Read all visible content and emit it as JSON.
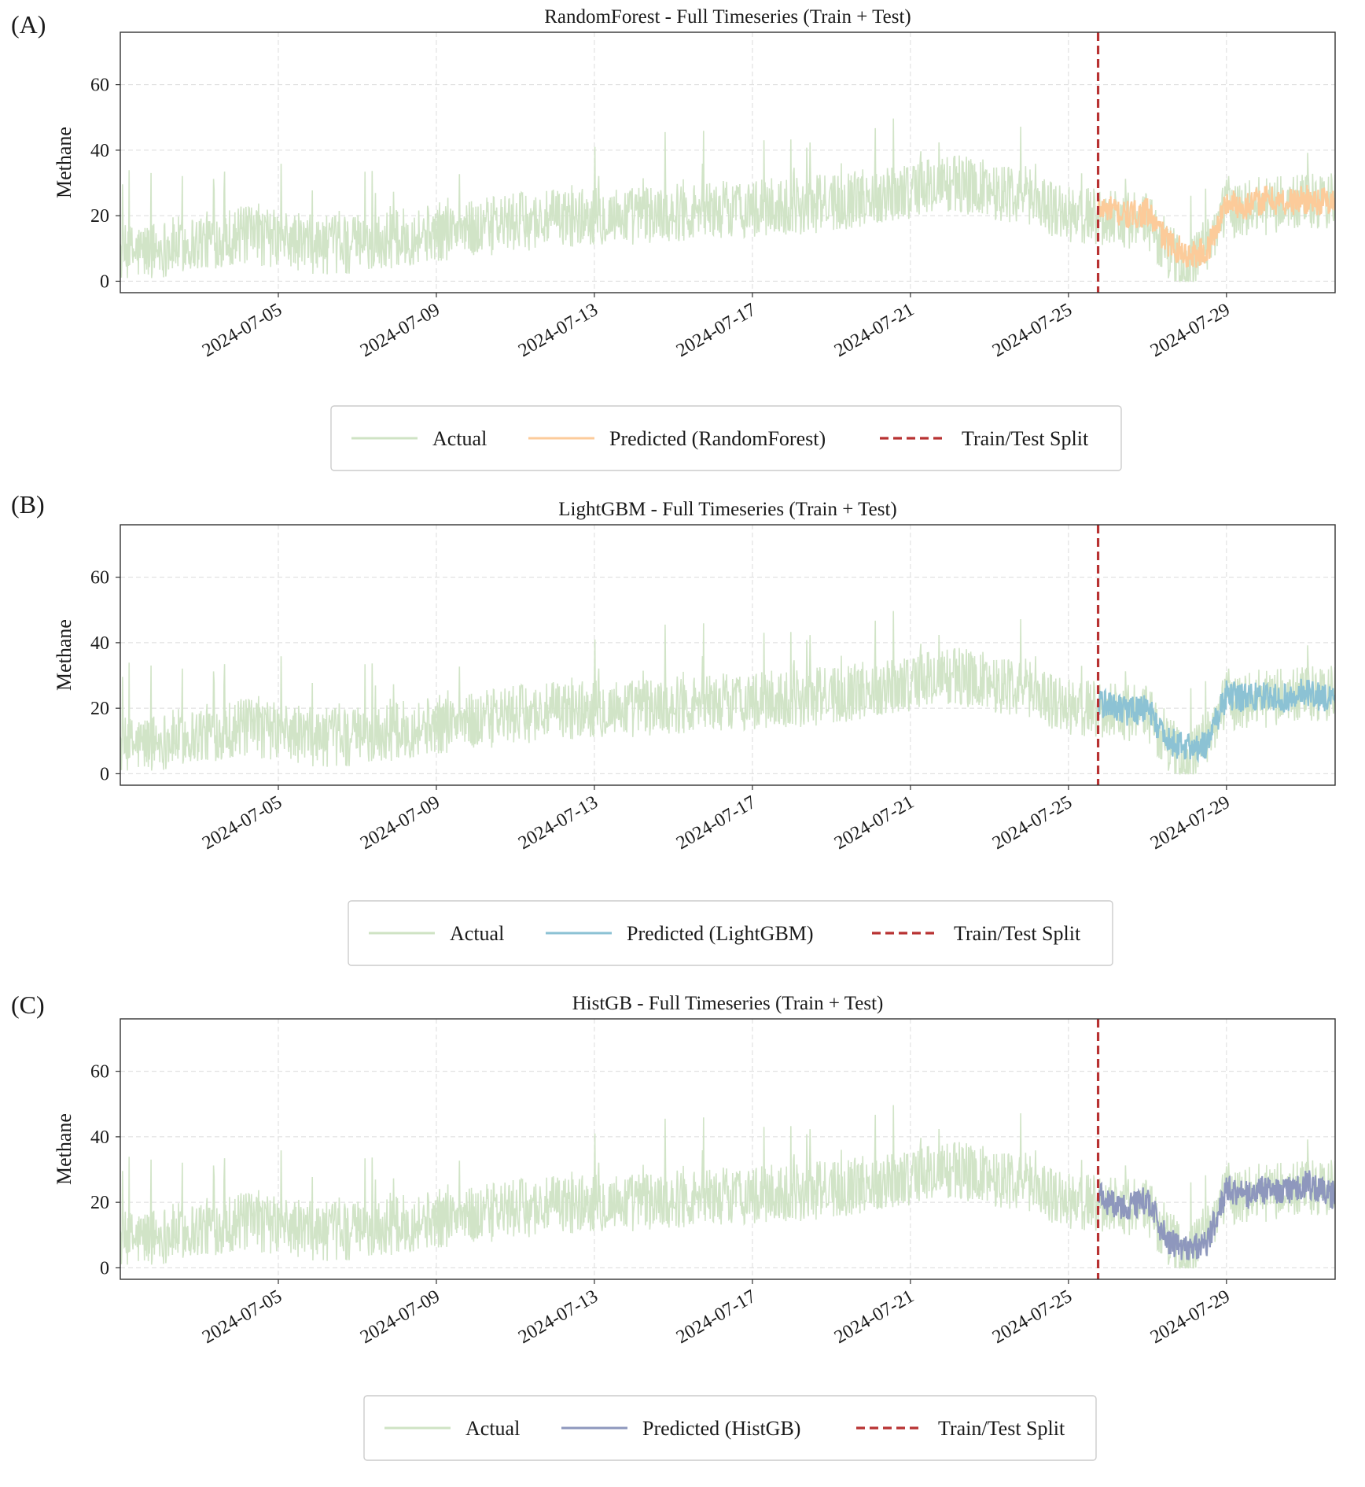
{
  "chart_data": [
    {
      "type": "line",
      "panel_label": "(A)",
      "title": "RandomForest - Full Timeseries (Train + Test)",
      "xlabel": "",
      "ylabel": "Methane",
      "x_start": "2024-07-01",
      "x_end": "2024-07-31T18:00",
      "ylim": [
        -3.5,
        76
      ],
      "yticks": [
        0,
        20,
        40,
        60
      ],
      "xticks": [
        "2024-07-05",
        "2024-07-09",
        "2024-07-13",
        "2024-07-17",
        "2024-07-21",
        "2024-07-25",
        "2024-07-29"
      ],
      "grid": true,
      "split_date": "2024-07-25T18:00",
      "colors": {
        "actual": "#cfe3c4",
        "predicted": "#fccb9a",
        "split": "#b83232"
      },
      "series": [
        {
          "name": "Actual",
          "x": [
            "2024-07-01",
            "2024-07-02",
            "2024-07-03",
            "2024-07-04",
            "2024-07-05",
            "2024-07-06",
            "2024-07-07",
            "2024-07-08",
            "2024-07-09",
            "2024-07-10",
            "2024-07-11",
            "2024-07-12",
            "2024-07-13",
            "2024-07-14",
            "2024-07-15",
            "2024-07-16",
            "2024-07-17",
            "2024-07-18",
            "2024-07-19",
            "2024-07-20",
            "2024-07-21",
            "2024-07-22",
            "2024-07-23",
            "2024-07-24",
            "2024-07-25",
            "2024-07-26",
            "2024-07-27",
            "2024-07-28",
            "2024-07-29",
            "2024-07-30",
            "2024-07-31"
          ],
          "values": [
            8,
            10,
            12,
            14,
            13,
            11,
            11,
            13,
            15,
            16,
            18,
            19,
            20,
            20,
            21,
            22,
            22,
            23,
            24,
            26,
            28,
            30,
            28,
            26,
            20,
            20,
            18,
            2,
            22,
            23,
            24
          ]
        },
        {
          "name": "Predicted (RandomForest)",
          "x": [
            "2024-07-25T18:00",
            "2024-07-26",
            "2024-07-26T12:00",
            "2024-07-27",
            "2024-07-27T12:00",
            "2024-07-28",
            "2024-07-28T12:00",
            "2024-07-29",
            "2024-07-29T12:00",
            "2024-07-30",
            "2024-07-30T12:00",
            "2024-07-31",
            "2024-07-31T18:00"
          ],
          "values": [
            22,
            22,
            20,
            21,
            12,
            8,
            9,
            24,
            23,
            25,
            24,
            25,
            24
          ]
        },
        {
          "name": "Train/Test Split"
        }
      ]
    },
    {
      "type": "line",
      "panel_label": "(B)",
      "title": "LightGBM - Full Timeseries (Train + Test)",
      "xlabel": "",
      "ylabel": "Methane",
      "x_start": "2024-07-01",
      "x_end": "2024-07-31T18:00",
      "ylim": [
        -3.5,
        76
      ],
      "yticks": [
        0,
        20,
        40,
        60
      ],
      "xticks": [
        "2024-07-05",
        "2024-07-09",
        "2024-07-13",
        "2024-07-17",
        "2024-07-21",
        "2024-07-25",
        "2024-07-29"
      ],
      "grid": true,
      "split_date": "2024-07-25T18:00",
      "colors": {
        "actual": "#cfe3c4",
        "predicted": "#8cc2d4",
        "split": "#b83232"
      },
      "series": [
        {
          "name": "Actual",
          "x": [
            "2024-07-01",
            "2024-07-02",
            "2024-07-03",
            "2024-07-04",
            "2024-07-05",
            "2024-07-06",
            "2024-07-07",
            "2024-07-08",
            "2024-07-09",
            "2024-07-10",
            "2024-07-11",
            "2024-07-12",
            "2024-07-13",
            "2024-07-14",
            "2024-07-15",
            "2024-07-16",
            "2024-07-17",
            "2024-07-18",
            "2024-07-19",
            "2024-07-20",
            "2024-07-21",
            "2024-07-22",
            "2024-07-23",
            "2024-07-24",
            "2024-07-25",
            "2024-07-26",
            "2024-07-27",
            "2024-07-28",
            "2024-07-29",
            "2024-07-30",
            "2024-07-31"
          ],
          "values": [
            8,
            10,
            12,
            14,
            13,
            11,
            11,
            13,
            15,
            16,
            18,
            19,
            20,
            20,
            21,
            22,
            22,
            23,
            24,
            26,
            28,
            30,
            28,
            26,
            20,
            20,
            18,
            2,
            22,
            23,
            24
          ]
        },
        {
          "name": "Predicted (LightGBM)",
          "x": [
            "2024-07-25T18:00",
            "2024-07-26",
            "2024-07-26T12:00",
            "2024-07-27",
            "2024-07-27T12:00",
            "2024-07-28",
            "2024-07-28T12:00",
            "2024-07-29",
            "2024-07-29T12:00",
            "2024-07-30",
            "2024-07-30T12:00",
            "2024-07-31",
            "2024-07-31T18:00"
          ],
          "values": [
            22,
            21,
            19,
            20,
            10,
            8,
            9,
            24,
            23,
            24,
            23,
            25,
            22
          ]
        },
        {
          "name": "Train/Test Split"
        }
      ]
    },
    {
      "type": "line",
      "panel_label": "(C)",
      "title": "HistGB - Full Timeseries (Train + Test)",
      "xlabel": "",
      "ylabel": "Methane",
      "x_start": "2024-07-01",
      "x_end": "2024-07-31T18:00",
      "ylim": [
        -3.5,
        76
      ],
      "yticks": [
        0,
        20,
        40,
        60
      ],
      "xticks": [
        "2024-07-05",
        "2024-07-09",
        "2024-07-13",
        "2024-07-17",
        "2024-07-21",
        "2024-07-25",
        "2024-07-29"
      ],
      "grid": true,
      "split_date": "2024-07-25T18:00",
      "colors": {
        "actual": "#cfe3c4",
        "predicted": "#8e97bd",
        "split": "#b83232"
      },
      "series": [
        {
          "name": "Actual",
          "x": [
            "2024-07-01",
            "2024-07-02",
            "2024-07-03",
            "2024-07-04",
            "2024-07-05",
            "2024-07-06",
            "2024-07-07",
            "2024-07-08",
            "2024-07-09",
            "2024-07-10",
            "2024-07-11",
            "2024-07-12",
            "2024-07-13",
            "2024-07-14",
            "2024-07-15",
            "2024-07-16",
            "2024-07-17",
            "2024-07-18",
            "2024-07-19",
            "2024-07-20",
            "2024-07-21",
            "2024-07-22",
            "2024-07-23",
            "2024-07-24",
            "2024-07-25",
            "2024-07-26",
            "2024-07-27",
            "2024-07-28",
            "2024-07-29",
            "2024-07-30",
            "2024-07-31"
          ],
          "values": [
            8,
            10,
            12,
            14,
            13,
            11,
            11,
            13,
            15,
            16,
            18,
            19,
            20,
            20,
            21,
            22,
            22,
            23,
            24,
            26,
            28,
            30,
            28,
            26,
            20,
            20,
            18,
            2,
            22,
            23,
            24
          ]
        },
        {
          "name": "Predicted (HistGB)",
          "x": [
            "2024-07-25T18:00",
            "2024-07-26",
            "2024-07-26T12:00",
            "2024-07-27",
            "2024-07-27T12:00",
            "2024-07-28",
            "2024-07-28T12:00",
            "2024-07-29",
            "2024-07-29T12:00",
            "2024-07-30",
            "2024-07-30T12:00",
            "2024-07-31",
            "2024-07-31T18:00"
          ],
          "values": [
            22,
            20,
            18,
            21,
            8,
            6,
            7,
            24,
            22,
            24,
            23,
            26,
            22
          ]
        },
        {
          "name": "Train/Test Split"
        }
      ]
    }
  ]
}
